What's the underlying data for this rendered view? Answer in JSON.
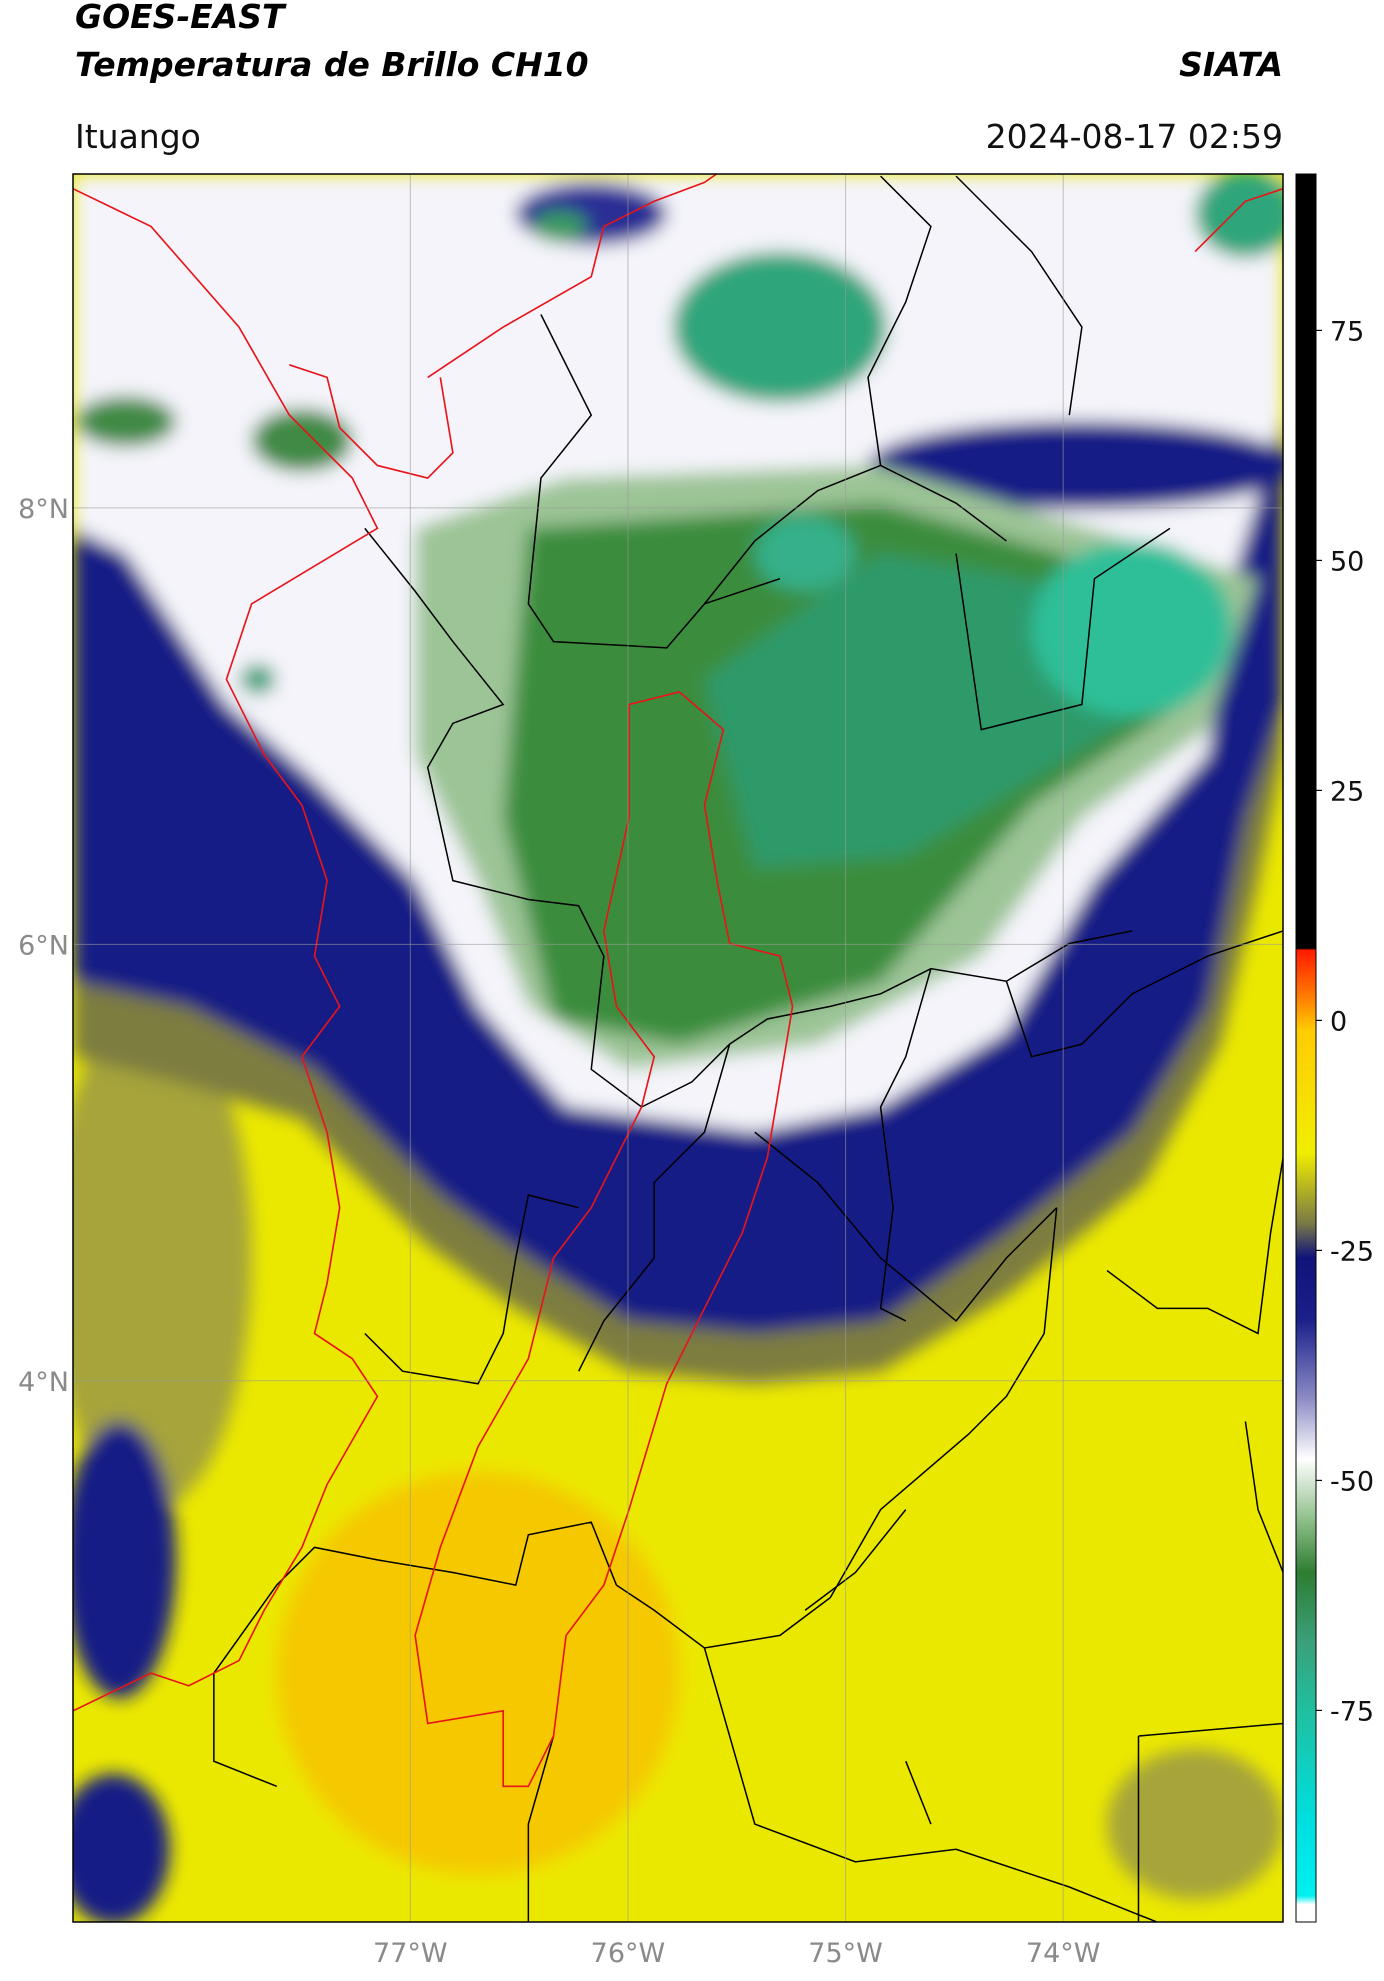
{
  "header": {
    "title_line1": "GOES-EAST",
    "title_line2": "Temperatura de Brillo CH10",
    "organization": "SIATA",
    "location": "Ituango",
    "timestamp": "2024-08-17 02:59"
  },
  "map": {
    "lonlim": [
      -78.55,
      -72.99
    ],
    "latlim": [
      1.52,
      9.53
    ],
    "lat_ticks": [
      {
        "value": 8,
        "label": "8°N"
      },
      {
        "value": 6,
        "label": "6°N"
      },
      {
        "value": 4,
        "label": "4°N"
      }
    ],
    "lon_ticks": [
      {
        "value": -77,
        "label": "77°W"
      },
      {
        "value": -76,
        "label": "76°W"
      },
      {
        "value": -75,
        "label": "75°W"
      },
      {
        "value": -74,
        "label": "74°W"
      }
    ]
  },
  "colorbar": {
    "lim": [
      -98,
      92
    ],
    "ticks": [
      75,
      50,
      25,
      0,
      -25,
      -50,
      -75
    ]
  }
}
